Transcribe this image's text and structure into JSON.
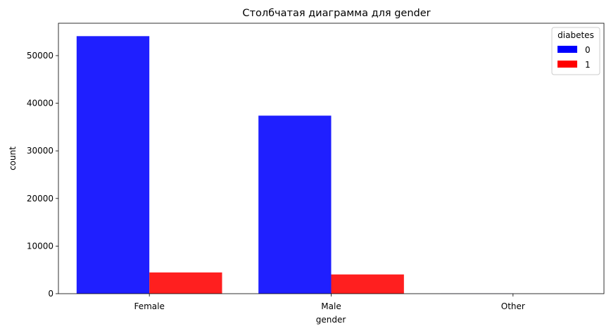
{
  "chart_data": {
    "type": "bar",
    "title": "Столбчатая диаграмма для gender",
    "xlabel": "gender",
    "ylabel": "count",
    "categories": [
      "Female",
      "Male",
      "Other"
    ],
    "series": [
      {
        "name": "0",
        "color": "#0000ff",
        "values": [
          54091,
          37391,
          18
        ]
      },
      {
        "name": "1",
        "color": "#ff0000",
        "values": [
          4461,
          4039,
          0
        ]
      }
    ],
    "ylim": [
      0,
      56800
    ],
    "yticks": [
      0,
      10000,
      20000,
      30000,
      40000,
      50000
    ],
    "ytick_labels": [
      "0",
      "10000",
      "20000",
      "30000",
      "40000",
      "50000"
    ],
    "legend": {
      "title": "diabetes",
      "position": "top-right",
      "labels": [
        "0",
        "1"
      ]
    },
    "grid": false
  }
}
